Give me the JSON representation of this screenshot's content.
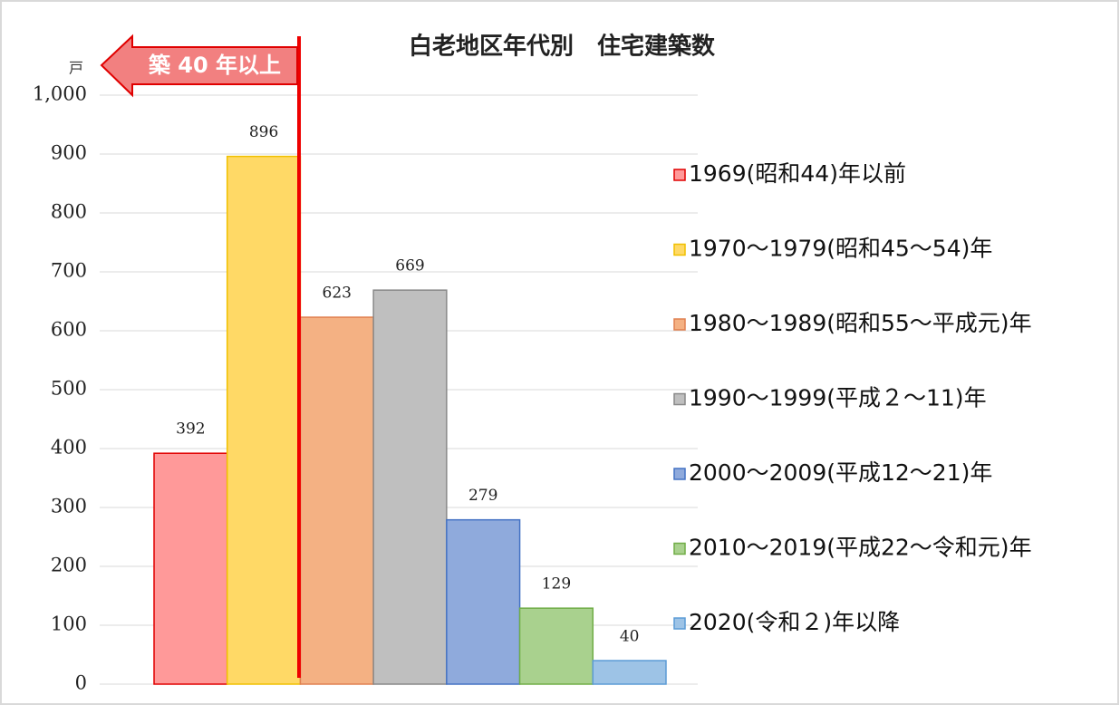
{
  "chart_data": {
    "type": "bar",
    "title": "白老地区年代別　住宅建築数",
    "y_unit": "戸",
    "annotation": "築 40 年以上",
    "categories": [
      null
    ],
    "series": [
      {
        "name": "1969(昭和44)年以前",
        "color": "#ff9999",
        "values": [
          392
        ]
      },
      {
        "name": "1970～1979(昭和45～54)年",
        "color": "#ffd966",
        "values": [
          896
        ]
      },
      {
        "name": "1980～1989(昭和55～平成元)年",
        "color": "#f4b183",
        "values": [
          623
        ]
      },
      {
        "name": "1990～1999(平成２～11)年",
        "color": "#bfbfbf",
        "values": [
          669
        ]
      },
      {
        "name": "2000～2009(平成12～21)年",
        "color": "#8faadc",
        "values": [
          279
        ]
      },
      {
        "name": "2010～2019(平成22～令和元)年",
        "color": "#a9d18e",
        "values": [
          129
        ]
      },
      {
        "name": "2020(令和２)年以降",
        "color": "#9dc3e6",
        "values": [
          40
        ]
      }
    ],
    "ylim": [
      0,
      1000
    ],
    "yticks": [
      0,
      100,
      200,
      300,
      400,
      500,
      600,
      700,
      800,
      900,
      {
        "value": 1000,
        "label": "1,000"
      }
    ],
    "grid": true,
    "legend": "right"
  }
}
